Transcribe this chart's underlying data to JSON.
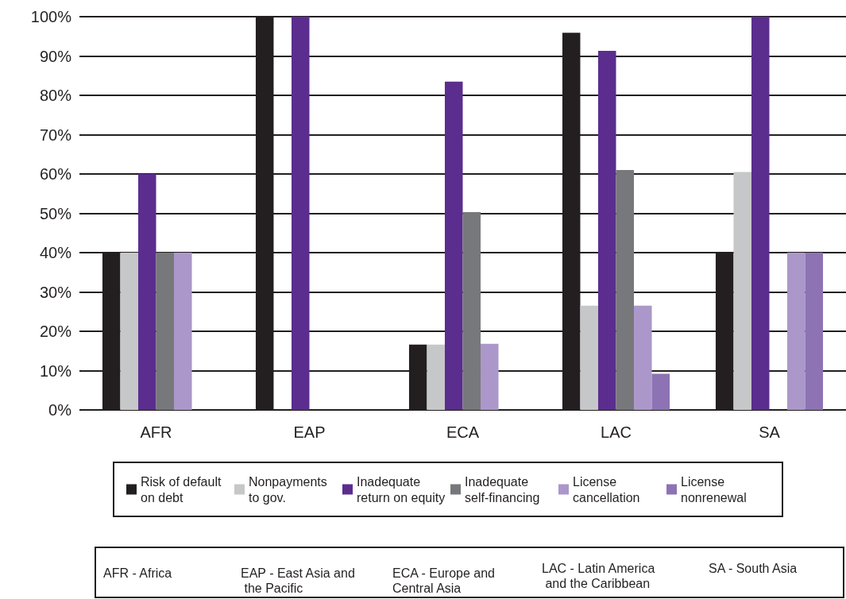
{
  "chart_data": {
    "type": "bar",
    "categories": [
      "AFR",
      "EAP",
      "ECA",
      "LAC",
      "SA"
    ],
    "series": [
      {
        "name": "Risk of default on debt",
        "color": "#231f20",
        "values": [
          40,
          100,
          16.6,
          95.9,
          40
        ]
      },
      {
        "name": "Nonpayments to gov.",
        "color": "#c6c7c8",
        "values": [
          40,
          null,
          16.6,
          26.5,
          60.5
        ]
      },
      {
        "name": "Inadequate return on equity",
        "color": "#5b2d8e",
        "values": [
          60,
          100,
          83.5,
          91.3,
          100
        ]
      },
      {
        "name": "Inadequate self-financing",
        "color": "#77787b",
        "values": [
          40,
          null,
          50.3,
          61,
          null
        ]
      },
      {
        "name": "License cancellation",
        "color": "#ab97c9",
        "values": [
          40,
          null,
          16.8,
          26.5,
          40
        ]
      },
      {
        "name": "License nonrenewal",
        "color": "#8d73b3",
        "values": [
          null,
          null,
          null,
          9.2,
          40
        ]
      }
    ],
    "ylim": [
      0,
      100
    ],
    "yticks": [
      {
        "value": 0,
        "label": "0%"
      },
      {
        "value": 10,
        "label": "10%"
      },
      {
        "value": 20,
        "label": "20%"
      },
      {
        "value": 30,
        "label": "30%"
      },
      {
        "value": 40,
        "label": "40%"
      },
      {
        "value": 50,
        "label": "50%"
      },
      {
        "value": 60,
        "label": "60%"
      },
      {
        "value": 70,
        "label": "70%"
      },
      {
        "value": 80,
        "label": "80%"
      },
      {
        "value": 90,
        "label": "90%"
      },
      {
        "value": 100,
        "label": "100%"
      }
    ],
    "grid": "y",
    "legend": "bottom",
    "annotations": [
      "AFR - Africa",
      "EAP - East Asia and the Pacific",
      "ECA - Europe and Central Asia",
      "LAC - Latin America and the Caribbean",
      "SA - South Asia"
    ]
  }
}
